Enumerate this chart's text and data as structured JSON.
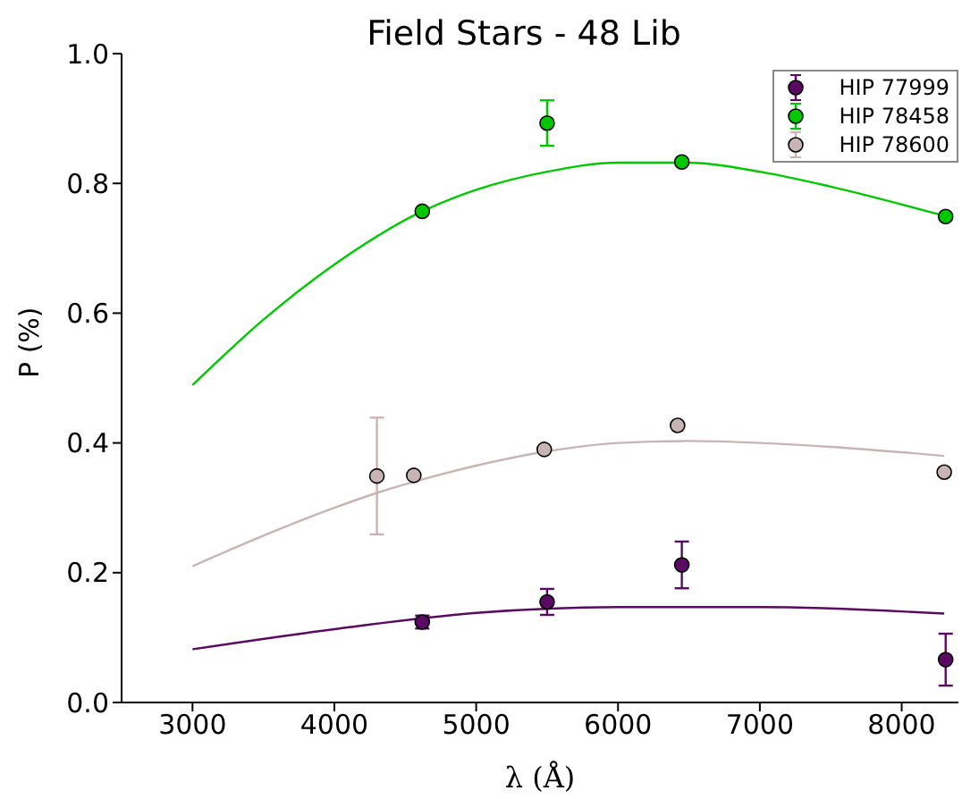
{
  "chart_data": {
    "type": "scatter",
    "title": "Field Stars - 48 Lib",
    "xlabel": "λ (Å)",
    "ylabel": "P (%)",
    "xlim": [
      2500,
      8400
    ],
    "xticks": [
      3000,
      4000,
      5000,
      6000,
      7000,
      8000
    ],
    "ylim": [
      0,
      1
    ],
    "yticks": [
      {
        "value": 0,
        "label": "0.0"
      },
      {
        "value": 0.2,
        "label": "0.2"
      },
      {
        "value": 0.4,
        "label": "0.4"
      },
      {
        "value": 0.6,
        "label": "0.6"
      },
      {
        "value": 0.8,
        "label": "0.8"
      },
      {
        "value": 1,
        "label": "1.0"
      }
    ],
    "grid": false,
    "legend": "top right",
    "series": [
      {
        "name": "HIP 77999",
        "color": "#5b0a63",
        "x": [
          4620,
          5500,
          6450,
          8310
        ],
        "values": [
          0.124,
          0.155,
          0.212,
          0.066
        ],
        "errors": [
          0.01,
          0.02,
          0.036,
          0.04
        ],
        "marker": "circle"
      },
      {
        "name": "HIP 78458",
        "color": "#00c800",
        "x": [
          4620,
          5500,
          6450,
          8310
        ],
        "values": [
          0.757,
          0.893,
          0.833,
          0.749
        ],
        "errors": [
          null,
          0.035,
          null,
          null
        ],
        "marker": "circle"
      },
      {
        "name": "HIP 78600",
        "color": "#c8b4b4",
        "x": [
          4300,
          4560,
          5480,
          6420,
          8300
        ],
        "values": [
          0.349,
          0.35,
          0.39,
          0.427,
          0.355
        ],
        "errors": [
          0.09,
          null,
          null,
          null,
          null
        ],
        "marker": "circle"
      },
      {
        "type": "line",
        "color": "#5b0a63",
        "x": [
          3000,
          4000,
          5000,
          6000,
          7000,
          8300
        ],
        "values": [
          0.082,
          0.113,
          0.138,
          0.147,
          0.147,
          0.137
        ],
        "marker": "none"
      },
      {
        "type": "line",
        "color": "#00c800",
        "x": [
          3000,
          3500,
          4000,
          4620,
          5000,
          5500,
          6000,
          6500,
          7000,
          7500,
          8300
        ],
        "values": [
          0.489,
          0.59,
          0.675,
          0.757,
          0.79,
          0.818,
          0.832,
          0.832,
          0.818,
          0.795,
          0.75
        ],
        "marker": "none"
      },
      {
        "type": "line",
        "color": "#c8b4b4",
        "x": [
          3000,
          3500,
          4000,
          4300,
          4560,
          5000,
          5500,
          6000,
          6500,
          7000,
          7500,
          8300
        ],
        "values": [
          0.21,
          0.257,
          0.3,
          0.323,
          0.34,
          0.365,
          0.387,
          0.4,
          0.403,
          0.4,
          0.394,
          0.38
        ],
        "marker": "none"
      }
    ]
  }
}
